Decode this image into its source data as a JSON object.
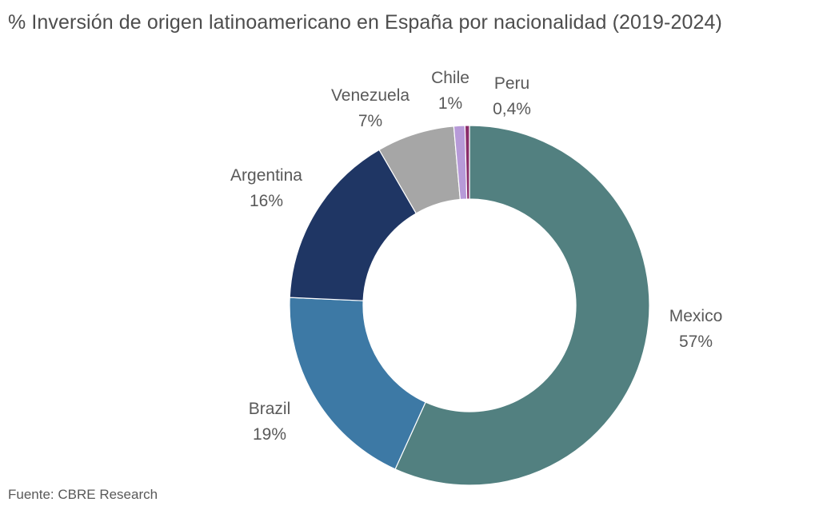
{
  "chart_data": {
    "type": "pie",
    "variant": "donut",
    "title": "% Inversión de origen latinoamericano en España por nacionalidad (2019-2024)",
    "slices": [
      {
        "name": "Mexico",
        "value": 57,
        "label": "57%",
        "color": "#528080"
      },
      {
        "name": "Brazil",
        "value": 19,
        "label": "19%",
        "color": "#3d79a5"
      },
      {
        "name": "Argentina",
        "value": 16,
        "label": "16%",
        "color": "#1f3664"
      },
      {
        "name": "Venezuela",
        "value": 7,
        "label": "7%",
        "color": "#a6a6a6"
      },
      {
        "name": "Chile",
        "value": 1,
        "label": "1%",
        "color": "#b79ad8"
      },
      {
        "name": "Peru",
        "value": 0.4,
        "label": "0,4%",
        "color": "#8a2c6a"
      }
    ],
    "legend": "none",
    "start": "top",
    "direction": "clockwise"
  },
  "footer": {
    "source": "Fuente: CBRE Research"
  }
}
